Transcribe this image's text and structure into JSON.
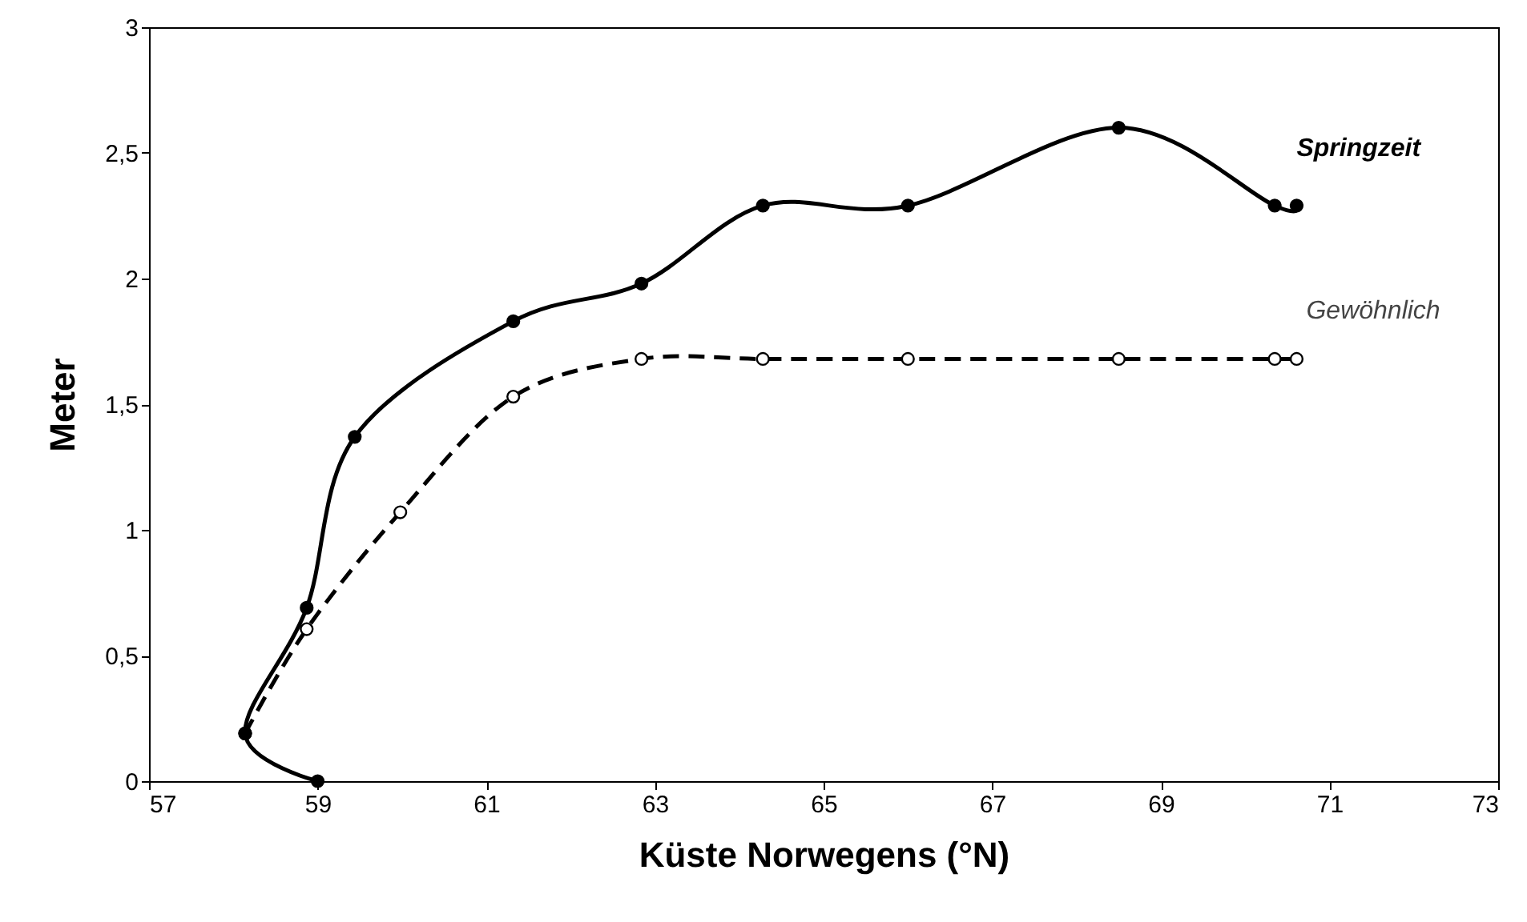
{
  "chart_data": {
    "type": "line",
    "xlabel": "Küste Norwegens (°N)",
    "ylabel": "Meter",
    "xlim": [
      57,
      73
    ],
    "xticks": [
      57,
      59,
      61,
      63,
      65,
      67,
      69,
      71,
      73
    ],
    "ylim": [
      0,
      3
    ],
    "yticks": [
      0,
      {
        "value": 0.5,
        "label": "0,5"
      },
      1,
      {
        "value": 1.5,
        "label": "1,5"
      },
      2,
      {
        "value": 2.5,
        "label": "2,5"
      },
      3
    ],
    "grid": false,
    "marker": "circle",
    "series": [
      {
        "name": "Springzeit",
        "color": "#000000",
        "line_style": "solid",
        "x": [
          59.0,
          58.14,
          58.87,
          59.44,
          61.32,
          62.84,
          64.28,
          66.0,
          68.5,
          70.35,
          70.61
        ],
        "values": [
          0,
          0.19,
          0.69,
          1.37,
          1.83,
          1.98,
          2.29,
          2.29,
          2.6,
          2.29,
          2.29
        ]
      },
      {
        "name": "Gewöhnlich",
        "color": "#000000",
        "line_style": "dashed",
        "x": [
          58.14,
          58.87,
          59.98,
          61.32,
          62.84,
          64.28,
          66.0,
          68.5,
          70.35,
          70.61
        ],
        "values": [
          0.19,
          0.605,
          1.07,
          1.53,
          1.68,
          1.68,
          1.68,
          1.68,
          1.68,
          1.68
        ]
      }
    ]
  }
}
